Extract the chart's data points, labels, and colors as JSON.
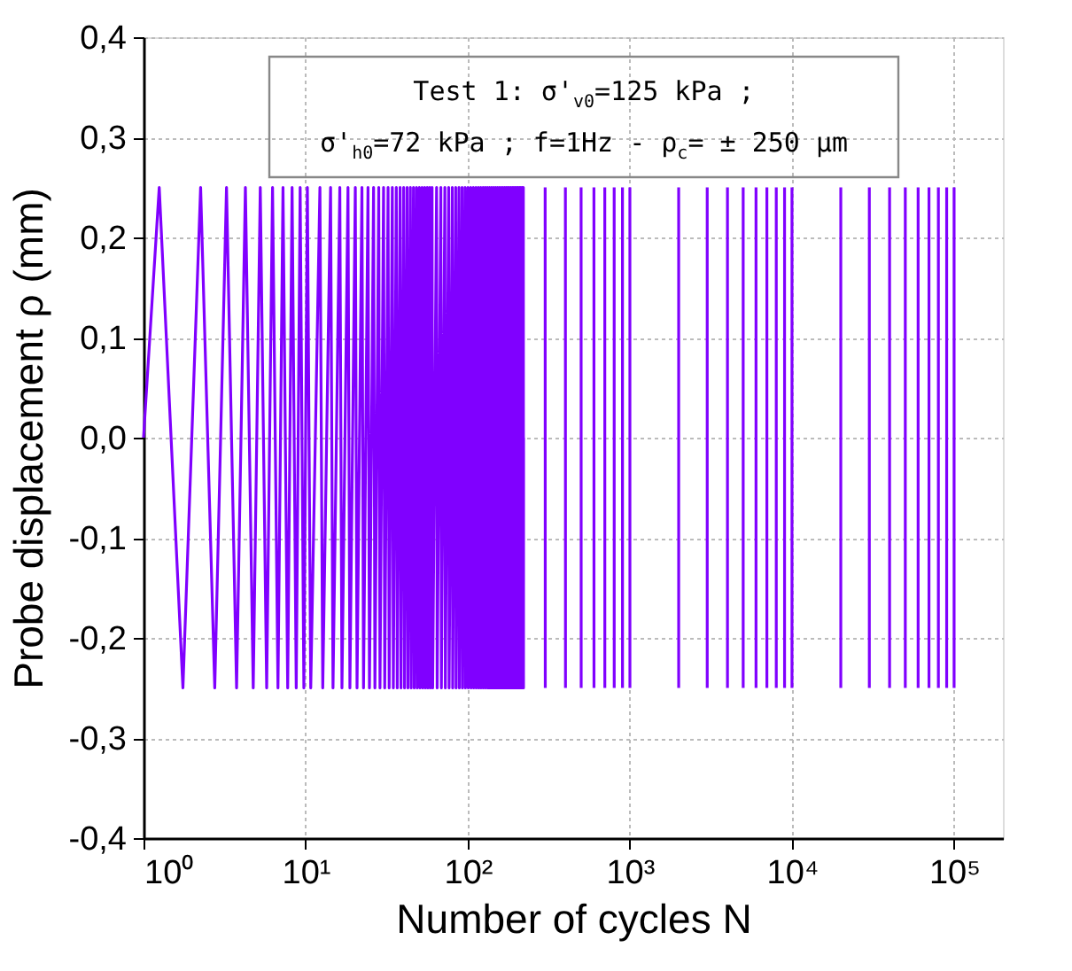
{
  "chart_data": {
    "type": "line",
    "xlabel": "Number of cycles N",
    "ylabel": "Probe displacement ρ (mm)",
    "annotations": [
      "Test 1: σ'$_{v0}$=125 kPa ;",
      "σ'$_{h0}$=72 kPa ; f=1Hz - ρ$_{c}$= ± 250 μm"
    ],
    "log": "x",
    "xlim": [
      1,
      200000
    ],
    "xticks": [
      {
        "value": 1,
        "label": "10⁰"
      },
      {
        "value": 10,
        "label": "10¹"
      },
      {
        "value": 100,
        "label": "10²"
      },
      {
        "value": 1000,
        "label": "10³"
      },
      {
        "value": 10000,
        "label": "10⁴"
      },
      {
        "value": 100000,
        "label": "10⁵"
      }
    ],
    "ylim": [
      -0.4,
      0.4
    ],
    "yticks": [
      {
        "value": -0.4,
        "label": "-0,4"
      },
      {
        "value": -0.3,
        "label": "-0,3"
      },
      {
        "value": -0.2,
        "label": "-0,2"
      },
      {
        "value": -0.1,
        "label": "-0,1"
      },
      {
        "value": 0,
        "label": "0,0"
      },
      {
        "value": 0.1,
        "label": "0,1"
      },
      {
        "value": 0.2,
        "label": "0,2"
      },
      {
        "value": 0.3,
        "label": "0,3"
      },
      {
        "value": 0.4,
        "label": "0,4"
      }
    ],
    "grid": true,
    "line_style": "solid",
    "marker": "none",
    "series": [
      {
        "color": "#8000ff",
        "x": [
          1,
          1.25,
          1.75,
          2.25,
          2.75,
          3.25,
          3.75,
          4.25,
          4.75,
          5.25,
          5.75,
          6.25,
          6.75,
          7.25,
          7.75,
          8.25,
          8.75,
          9.25,
          9.75,
          10.25,
          10.75,
          12.25,
          12.75,
          14.25,
          14.75,
          16.25,
          16.75,
          18.25,
          18.75,
          20.25,
          20.75,
          22.25,
          22.75,
          24.25,
          24.75,
          26.25,
          26.75,
          28.25,
          28.75,
          30.25,
          30.75,
          32.25,
          32.75,
          34.25,
          34.75,
          36.25,
          36.75,
          38.25,
          38.75,
          40.25,
          40.75,
          42.25,
          42.75,
          44.25,
          44.75,
          46.25,
          46.75,
          48.25,
          48.75,
          50.25,
          50.75,
          52.25,
          52.75,
          54.25,
          54.75,
          56.25,
          56.75,
          58.25,
          58.75,
          60.25,
          60.75,
          64.25,
          64.75,
          68.25,
          68.75,
          72.25,
          72.75,
          76.25,
          76.75,
          80.25,
          80.75,
          84.25,
          84.75,
          88.25,
          88.75,
          92.25,
          92.75,
          96.25,
          96.75,
          100.25,
          100.75,
          104.25,
          104.75,
          108.25,
          108.75,
          112.25,
          112.75,
          116.25,
          116.75,
          120.25,
          120.75,
          124.25,
          124.75,
          128.25,
          128.75,
          132.25,
          132.75,
          136.25,
          136.75,
          140.25,
          140.75,
          144.25,
          144.75,
          148.25,
          148.75,
          152.25,
          152.75,
          156.25,
          156.75,
          160.25,
          160.75,
          164.25,
          164.75,
          168.25,
          168.75,
          172.25,
          172.75,
          176.25,
          176.75,
          180.25,
          180.75,
          184.25,
          184.75,
          188.25,
          188.75,
          192.25,
          192.75,
          196.25,
          196.75,
          200.25,
          200.75,
          204.25,
          204.75,
          208.25,
          208.75,
          212.25,
          212.75,
          216.25,
          216.75,
          220.25,
          220.75,
          221,
          250,
          300.25,
          300.75,
          350,
          400.25,
          400.75,
          450,
          500.25,
          500.75,
          550,
          600.25,
          600.75,
          650,
          700.25,
          700.75,
          750,
          800.25,
          800.75,
          850,
          900.25,
          900.75,
          950,
          1000.25,
          1000.75,
          1500,
          2000.25,
          2000.75,
          2500,
          3000.25,
          3000.75,
          3500,
          4000.25,
          4000.75,
          4500,
          5000.25,
          5000.75,
          5500,
          6000.25,
          6000.75,
          6500,
          7000.25,
          7000.75,
          7500,
          8000.25,
          8000.75,
          8500,
          9000.25,
          9000.75,
          9500,
          10000.25,
          10000.75,
          15000,
          20000.25,
          20000.75,
          25000,
          30000.25,
          30000.75,
          35000,
          40000.25,
          40000.75,
          45000,
          50000.25,
          50000.75,
          55000,
          60000.25,
          60000.75,
          65000,
          70000.25,
          70000.75,
          75000,
          80000.25,
          80000.75,
          85000,
          90000.25,
          90000.75,
          95000,
          100000.25,
          100000.75
        ],
        "values": [
          0,
          0.25,
          -0.25,
          0.25,
          -0.25,
          0.25,
          -0.25,
          0.25,
          -0.25,
          0.25,
          -0.25,
          0.25,
          -0.25,
          0.25,
          -0.25,
          0.25,
          -0.25,
          0.25,
          -0.25,
          0.25,
          -0.25,
          0.25,
          -0.25,
          0.25,
          -0.25,
          0.25,
          -0.25,
          0.25,
          -0.25,
          0.25,
          -0.25,
          0.25,
          -0.25,
          0.25,
          -0.25,
          0.25,
          -0.25,
          0.25,
          -0.25,
          0.25,
          -0.25,
          0.25,
          -0.25,
          0.25,
          -0.25,
          0.25,
          -0.25,
          0.25,
          -0.25,
          0.25,
          -0.25,
          0.25,
          -0.25,
          0.25,
          -0.25,
          0.25,
          -0.25,
          0.25,
          -0.25,
          0.25,
          -0.25,
          0.25,
          -0.25,
          0.25,
          -0.25,
          0.25,
          -0.25,
          0.25,
          -0.25,
          0.25,
          -0.25,
          0.25,
          -0.25,
          0.25,
          -0.25,
          0.25,
          -0.25,
          0.25,
          -0.25,
          0.25,
          -0.25,
          0.25,
          -0.25,
          0.25,
          -0.25,
          0.25,
          -0.25,
          0.25,
          -0.25,
          0.25,
          -0.25,
          0.25,
          -0.25,
          0.25,
          -0.25,
          0.25,
          -0.25,
          0.25,
          -0.25,
          0.25,
          -0.25,
          0.25,
          -0.25,
          0.25,
          -0.25,
          0.25,
          -0.25,
          0.25,
          -0.25,
          0.25,
          -0.25,
          0.25,
          -0.25,
          0.25,
          -0.25,
          0.25,
          -0.25,
          0.25,
          -0.25,
          0.25,
          -0.25,
          0.25,
          -0.25,
          0.25,
          -0.25,
          0.25,
          -0.25,
          0.25,
          -0.25,
          0.25,
          -0.25,
          0.25,
          -0.25,
          0.25,
          -0.25,
          0.25,
          -0.25,
          0.25,
          -0.25,
          0.25,
          -0.25,
          0.25,
          -0.25,
          0.25,
          -0.25,
          0.25,
          -0.25,
          0.25,
          -0.25,
          0.25,
          -0.25,
          0,
          null,
          0.25,
          -0.25,
          null,
          0.25,
          -0.25,
          null,
          0.25,
          -0.25,
          null,
          0.25,
          -0.25,
          null,
          0.25,
          -0.25,
          null,
          0.25,
          -0.25,
          null,
          0.25,
          -0.25,
          null,
          0.25,
          -0.25,
          null,
          0.25,
          -0.25,
          null,
          0.25,
          -0.25,
          null,
          0.25,
          -0.25,
          null,
          0.25,
          -0.25,
          null,
          0.25,
          -0.25,
          null,
          0.25,
          -0.25,
          null,
          0.25,
          -0.25,
          null,
          0.25,
          -0.25,
          null,
          0.25,
          -0.25,
          null,
          0.25,
          -0.25,
          null,
          0.25,
          -0.25,
          null,
          0.25,
          -0.25,
          null,
          0.25,
          -0.25,
          null,
          0.25,
          -0.25,
          null,
          0.25,
          -0.25,
          null,
          0.25,
          -0.25,
          null,
          0.25,
          -0.25,
          null,
          0.25,
          -0.25
        ]
      }
    ]
  }
}
